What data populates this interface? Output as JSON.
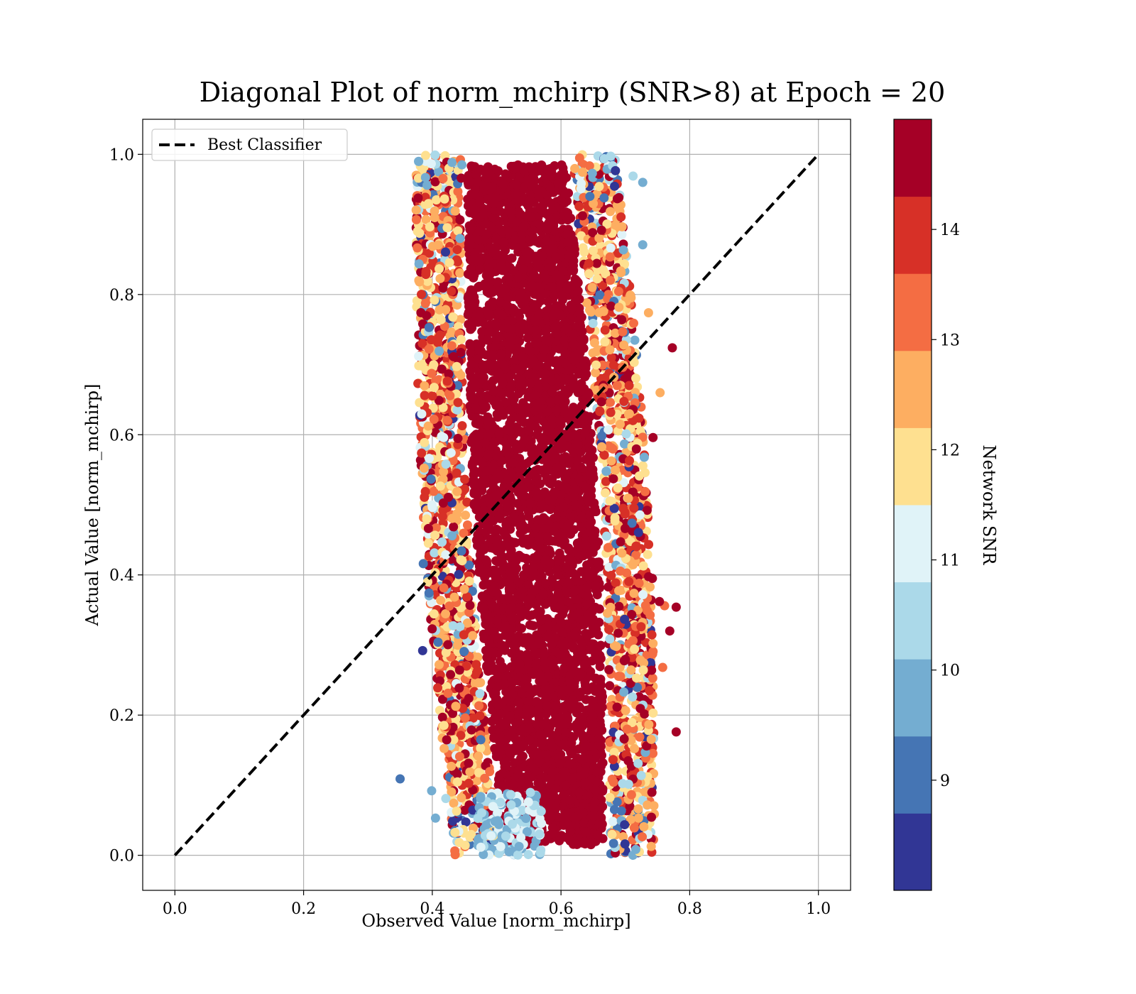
{
  "chart_data": {
    "type": "scatter",
    "title": "Diagonal Plot of norm_mchirp (SNR>8) at Epoch = 20",
    "xlabel": "Observed Value [norm_mchirp]",
    "ylabel": "Actual Value [norm_mchirp]",
    "xlim": [
      -0.05,
      1.05
    ],
    "ylim": [
      -0.05,
      1.05
    ],
    "xticks": [
      "0.0",
      "0.2",
      "0.4",
      "0.6",
      "0.8",
      "1.0"
    ],
    "yticks": [
      "0.0",
      "0.2",
      "0.4",
      "0.6",
      "0.8",
      "1.0"
    ],
    "grid": true,
    "legend": {
      "position": "top-left",
      "entries": [
        "Best Classifier"
      ]
    },
    "reference_line": {
      "name": "Best Classifier",
      "style": "dashed",
      "color": "#000000",
      "points": [
        [
          0.0,
          0.0
        ],
        [
          1.0,
          1.0
        ]
      ]
    },
    "scatter_summary": {
      "x_core_range": [
        0.46,
        0.68
      ],
      "y_range": [
        0.0,
        1.0
      ],
      "dominant_color": "#a50026"
    },
    "outliers": [
      {
        "x": 0.395,
        "y": 0.753,
        "snr": 9.0
      },
      {
        "x": 0.386,
        "y": 0.416,
        "snr": 9.0
      },
      {
        "x": 0.385,
        "y": 0.292,
        "snr": 8.3
      },
      {
        "x": 0.409,
        "y": 0.304,
        "snr": 9.0
      },
      {
        "x": 0.35,
        "y": 0.109,
        "snr": 9.0
      },
      {
        "x": 0.399,
        "y": 0.092,
        "snr": 9.8
      },
      {
        "x": 0.405,
        "y": 0.053,
        "snr": 9.8
      },
      {
        "x": 0.421,
        "y": 0.081,
        "snr": 10.5
      },
      {
        "x": 0.773,
        "y": 0.724,
        "snr": 14.8
      },
      {
        "x": 0.779,
        "y": 0.354,
        "snr": 14.8
      },
      {
        "x": 0.769,
        "y": 0.32,
        "snr": 14.8
      },
      {
        "x": 0.779,
        "y": 0.176,
        "snr": 14.8
      },
      {
        "x": 0.754,
        "y": 0.66,
        "snr": 12.5
      },
      {
        "x": 0.758,
        "y": 0.268,
        "snr": 13.3
      },
      {
        "x": 0.761,
        "y": 0.356,
        "snr": 13.3
      },
      {
        "x": 0.753,
        "y": 0.362,
        "snr": 14.3
      },
      {
        "x": 0.712,
        "y": 0.969,
        "snr": 10.5
      },
      {
        "x": 0.727,
        "y": 0.96,
        "snr": 9.8
      },
      {
        "x": 0.727,
        "y": 0.871,
        "snr": 9.8
      },
      {
        "x": 0.736,
        "y": 0.774,
        "snr": 12.5
      },
      {
        "x": 0.743,
        "y": 0.596,
        "snr": 14.8
      },
      {
        "x": 0.742,
        "y": 0.395,
        "snr": 14.8
      },
      {
        "x": 0.446,
        "y": 0.985,
        "snr": 9.8
      },
      {
        "x": 0.445,
        "y": 0.966,
        "snr": 14.8
      },
      {
        "x": 0.443,
        "y": 0.88,
        "snr": 9.8
      }
    ],
    "colorbar": {
      "label": "Network SNR",
      "range": [
        8,
        15
      ],
      "ticks": [
        "9",
        "10",
        "11",
        "12",
        "13",
        "14"
      ],
      "tick_values": [
        9,
        10,
        11,
        12,
        13,
        14
      ],
      "colors": [
        "#313695",
        "#4575b4",
        "#74add1",
        "#abd9e9",
        "#e0f3f8",
        "#fee090",
        "#fdae61",
        "#f46d43",
        "#d73027",
        "#a50026"
      ]
    }
  }
}
